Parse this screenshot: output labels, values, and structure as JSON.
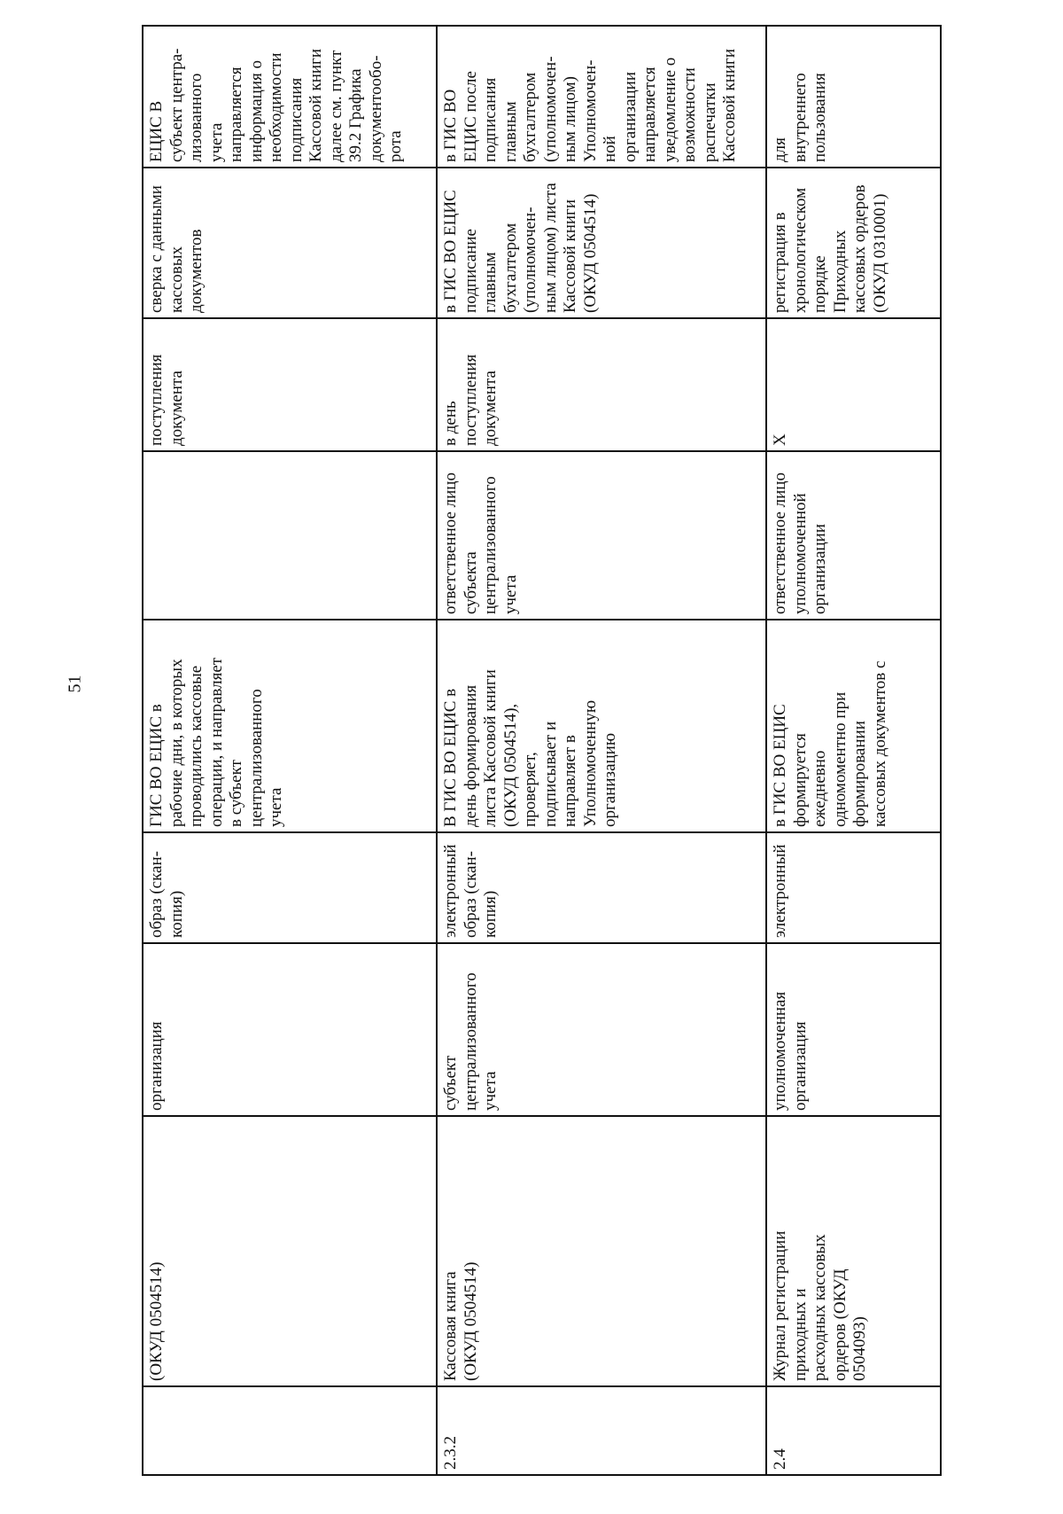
{
  "page_number": "51",
  "rows": [
    {
      "num": "",
      "name": "(ОКУД 0504514)",
      "party": "организация",
      "form": "образ (скан-\nкопия)",
      "description": "ГИС ВО ЕЦИС в\nрабочие дни, в которых\nпроводились кассовые\nоперации, и направляет\nв субъект\nцентрализованного\nучета",
      "responsible": "",
      "timing": "поступления\nдокумента",
      "control": "сверка с данными\nкассовых\nдокументов",
      "note": "ЕЦИС В\nсубъект центра-\nлизованного\nучета\nнаправляется\nинформация о\nнеобходимости\nподписания\nКассовой книги\nдалее см. пункт\n39.2 Графика\nдокументообо-\nрота"
    },
    {
      "num": "2.3.2",
      "name": "Кассовая книга\n(ОКУД 0504514)",
      "party": "субъект\nцентрализованного\nучета",
      "form": "электронный\nобраз (скан-\nкопия)",
      "description": "В ГИС ВО ЕЦИС в\nдень формирования\nлиста Кассовой книги\n(ОКУД 0504514),\nпроверяет,\nподписывает и\nнаправляет в\nУполномоченную\nорганизацию",
      "responsible": "ответственное лицо\nсубъекта\nцентрализованного\nучета",
      "timing": "в день\nпоступления\nдокумента",
      "control": "в ГИС ВО ЕЦИС\nподписание\nглавным\nбухгалтером\n(уполномочен-\nным лицом) листа\nКассовой книги\n(ОКУД 0504514)",
      "note": "в ГИС ВО\nЕЦИС после\nподписания\nглавным\nбухгалтером\n(уполномочен-\nным лицом)\nУполномочен-\nной\nорганизации\nнаправляется\nуведомление о\nвозможности\nраспечатки\nКассовой книги"
    },
    {
      "num": "2.4",
      "name": "Журнал регистрации\nприходных и\nрасходных кассовых\nордеров (ОКУД\n0504093)",
      "party": "уполномоченная\nорганизация",
      "form": "электронный",
      "description": "в ГИС ВО ЕЦИС\nформируется\nежедневно\nодномоментно при\nформировании\nкассовых документов с",
      "responsible": "ответственное лицо\nуполномоченной\nорганизации",
      "timing": "X",
      "control": "регистрация в\nхронологическом\nпорядке\nПриходных\nкассовых ордеров\n(ОКУД 0310001)",
      "note": "для\nвнутреннего\nпользования"
    }
  ]
}
